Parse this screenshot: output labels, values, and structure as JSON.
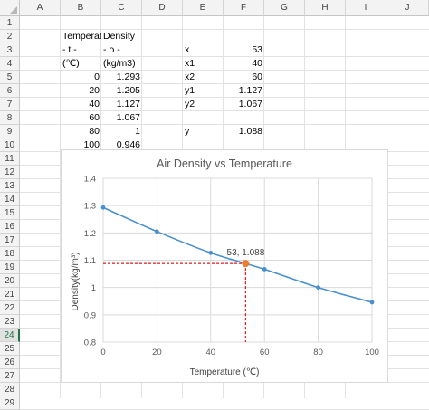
{
  "columns": [
    "A",
    "B",
    "C",
    "D",
    "E",
    "F",
    "G",
    "H",
    "I",
    "J"
  ],
  "rows": [
    "1",
    "2",
    "3",
    "4",
    "5",
    "6",
    "7",
    "8",
    "9",
    "10",
    "11",
    "12",
    "13",
    "14",
    "15",
    "16",
    "17",
    "18",
    "19",
    "20",
    "21",
    "22",
    "23",
    "24",
    "25",
    "26",
    "27",
    "28",
    "29"
  ],
  "selected_row": "24",
  "cells": {
    "B2": "Temperature",
    "C2": "Density",
    "B3": "- t -",
    "C3": "- ρ -",
    "B4": "(℃)",
    "C4": "(kg/m3)",
    "B5": "0",
    "C5": "1.293",
    "B6": "20",
    "C6": "1.205",
    "B7": "40",
    "C7": "1.127",
    "B8": "60",
    "C8": "1.067",
    "B9": "80",
    "C9": "1",
    "B10": "100",
    "C10": "0.946",
    "E3": "x",
    "F3": "53",
    "E4": "x1",
    "F4": "40",
    "E5": "x2",
    "F5": "60",
    "E6": "y1",
    "F6": "1.127",
    "E7": "y2",
    "F7": "1.067",
    "E9": "y",
    "F9": "1.088"
  },
  "chart_data": {
    "type": "scatter",
    "title": "Air Density vs Temperature",
    "xlabel": "Temperature (℃)",
    "ylabel": "Density(kg/m³)",
    "xlim": [
      0,
      100
    ],
    "ylim": [
      0.8,
      1.4
    ],
    "xticks": [
      "0",
      "20",
      "40",
      "60",
      "80",
      "100"
    ],
    "yticks": [
      "0.8",
      "0.9",
      "1",
      "1.1",
      "1.2",
      "1.3",
      "1.4"
    ],
    "grid": true,
    "series": [
      {
        "x": [
          0,
          20,
          40,
          60,
          80,
          100
        ],
        "y": [
          1.293,
          1.205,
          1.127,
          1.067,
          1,
          0.946
        ],
        "color": "#4a8fd0"
      }
    ],
    "highlight": {
      "x": 53,
      "y": 1.088,
      "label": "53, 1.088",
      "color": "#ed7d31",
      "guide_color": "#e01b1b"
    }
  }
}
